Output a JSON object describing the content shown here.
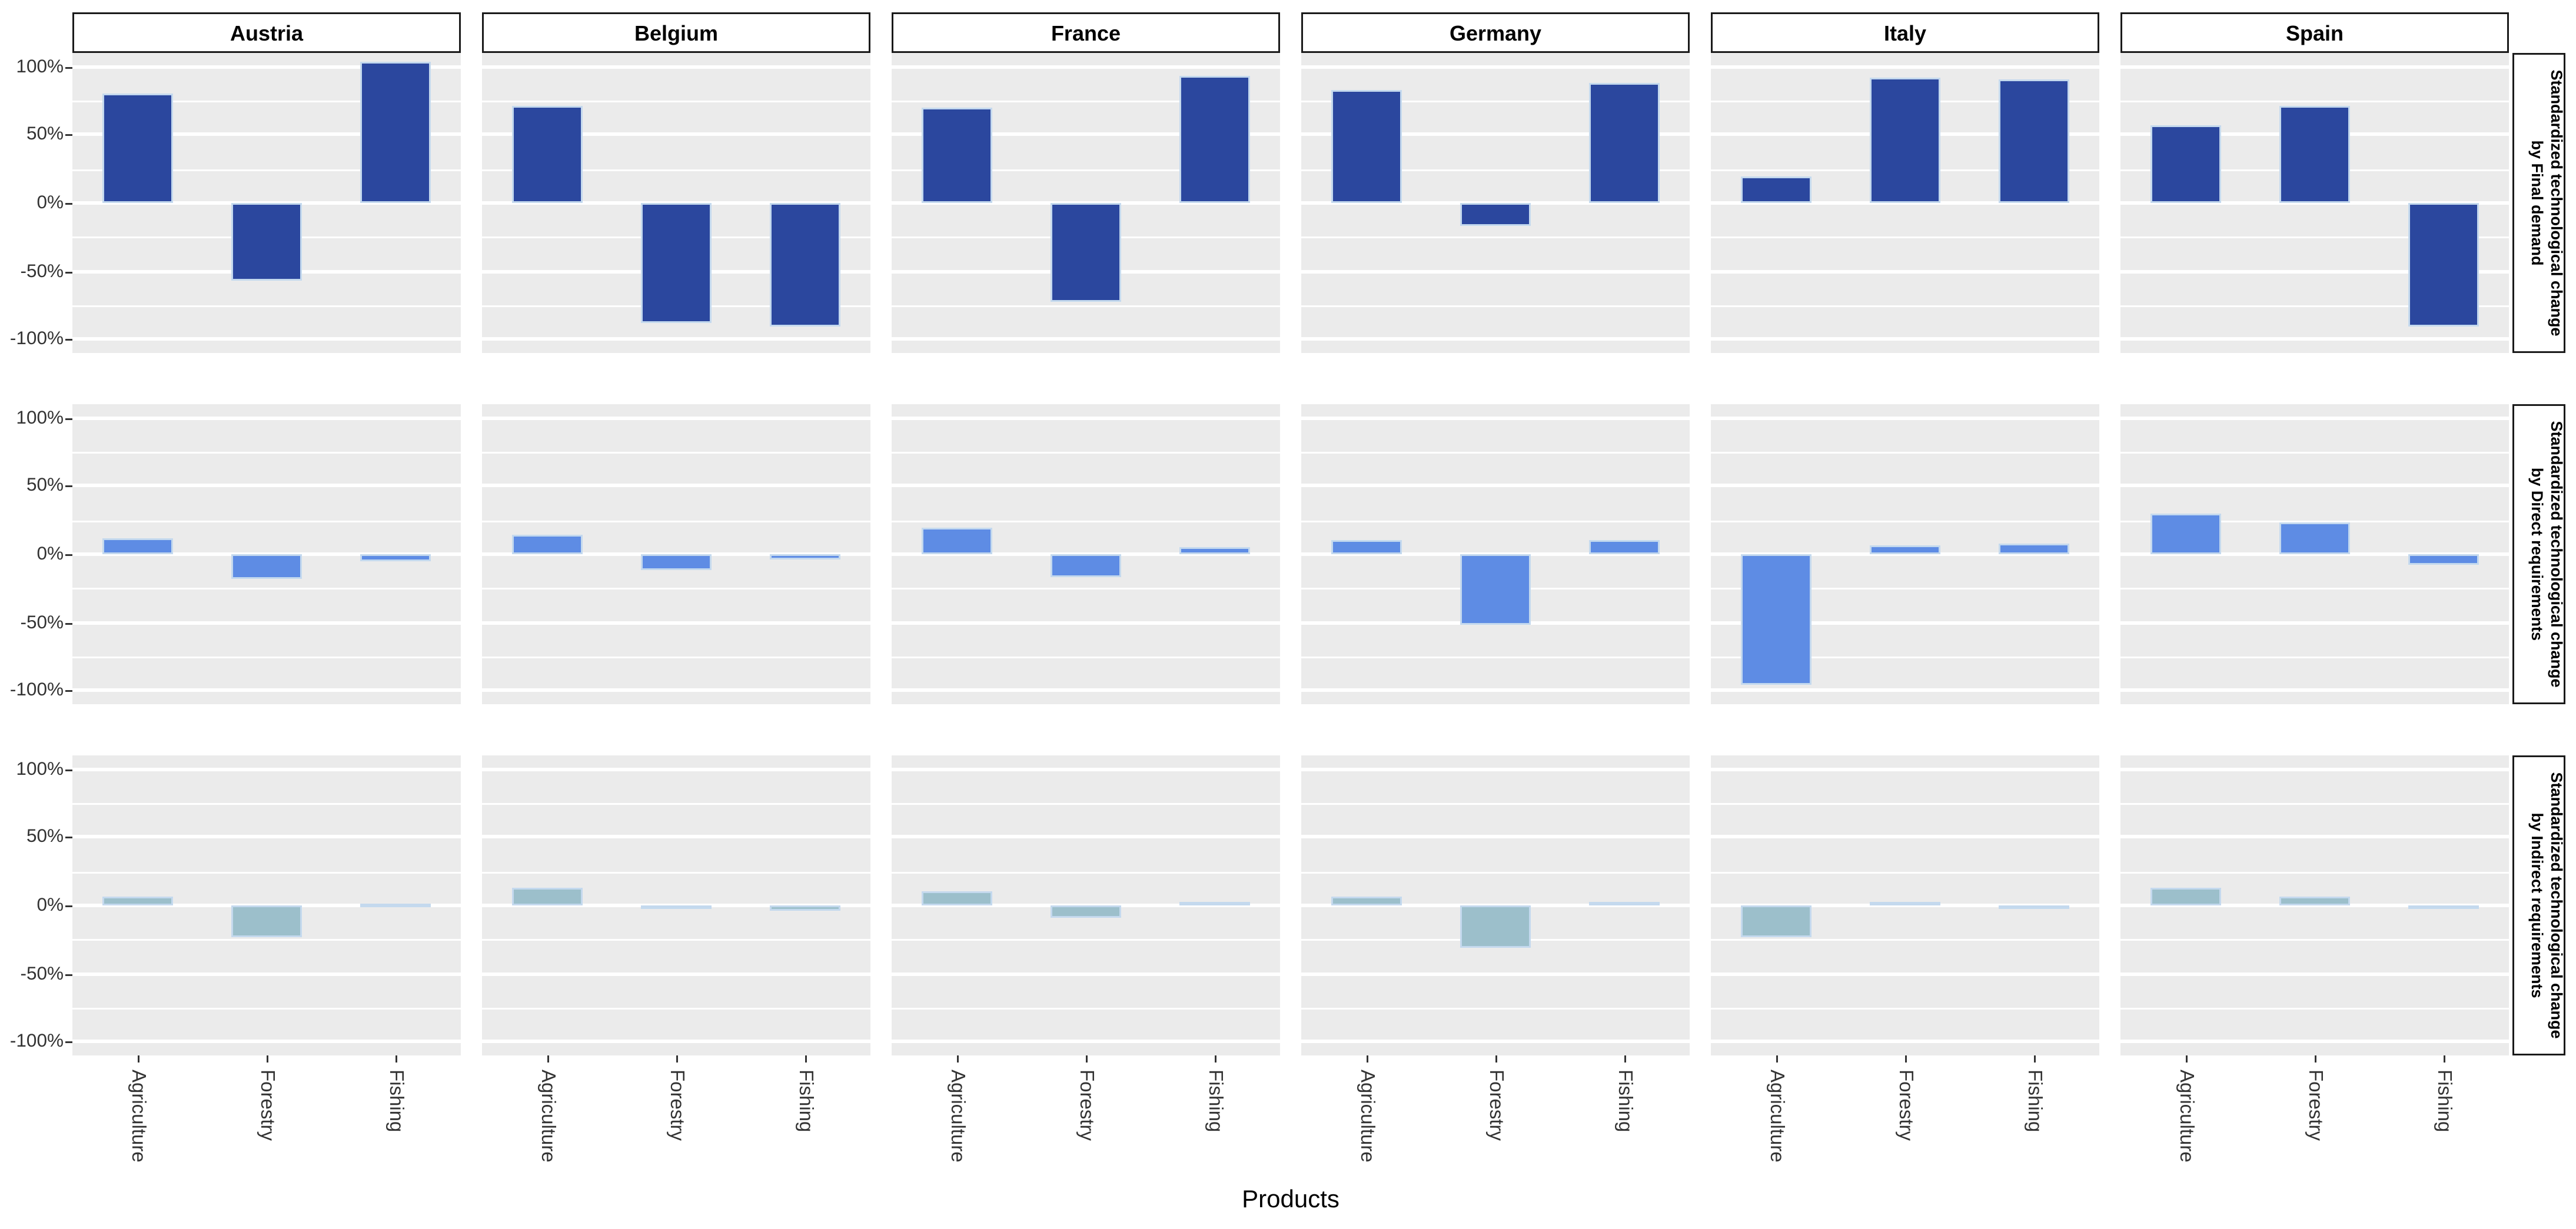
{
  "figure": {
    "x_axis_title": "Products",
    "colors": {
      "final_demand_fill": "#2B479E",
      "direct_fill": "#5E8CE4",
      "indirect_fill": "#9CBFCB",
      "bar_outline": "#C4D9EE",
      "panel_background": "#EBEBEB",
      "gridline": "#FFFFFF",
      "strip_background": "#FFFFFF",
      "strip_border": "#1A1A1A"
    }
  },
  "chart_data": {
    "type": "bar",
    "title": "",
    "xlabel": "Products",
    "ylabel": "",
    "grid": true,
    "legend": false,
    "ylim": [
      -110,
      110
    ],
    "y_ticks": [
      {
        "value": 100,
        "label": "100%"
      },
      {
        "value": 50,
        "label": "50%"
      },
      {
        "value": 0,
        "label": "0%"
      },
      {
        "value": -50,
        "label": "-50%"
      },
      {
        "value": -100,
        "label": "-100%"
      }
    ],
    "minor_gridlines": [
      75,
      25,
      -25,
      -75
    ],
    "categories": [
      "Agriculture",
      "Forestry",
      "Fishing"
    ],
    "facet_columns": [
      "Austria",
      "Belgium",
      "France",
      "Germany",
      "Italy",
      "Spain"
    ],
    "facet_rows": [
      {
        "strip_line1": "Standardized technological change",
        "strip_line2": "by Final demand",
        "color_key": "final_demand_fill",
        "values_percent": [
          [
            80,
            -57,
            103
          ],
          [
            71,
            -88,
            -90
          ],
          [
            70,
            -72,
            93
          ],
          [
            83,
            -17,
            88
          ],
          [
            19,
            92,
            91
          ],
          [
            57,
            71,
            -90
          ]
        ]
      },
      {
        "strip_line1": "Standardized technological change",
        "strip_line2": "by Direct requirements",
        "color_key": "direct_fill",
        "values_percent": [
          [
            12,
            -18,
            -5
          ],
          [
            14,
            -12,
            -4
          ],
          [
            19,
            -17,
            5
          ],
          [
            11,
            -52,
            10
          ],
          [
            -96,
            6,
            8
          ],
          [
            30,
            23,
            -8
          ]
        ]
      },
      {
        "strip_line1": "Standardized technological change",
        "strip_line2": "by Indirect requirements",
        "color_key": "indirect_fill",
        "values_percent": [
          [
            6,
            -23,
            1
          ],
          [
            13,
            -1,
            -4
          ],
          [
            11,
            -9,
            2
          ],
          [
            6,
            -31,
            3
          ],
          [
            -23,
            2,
            -1
          ],
          [
            13,
            7,
            -1
          ]
        ]
      }
    ]
  }
}
